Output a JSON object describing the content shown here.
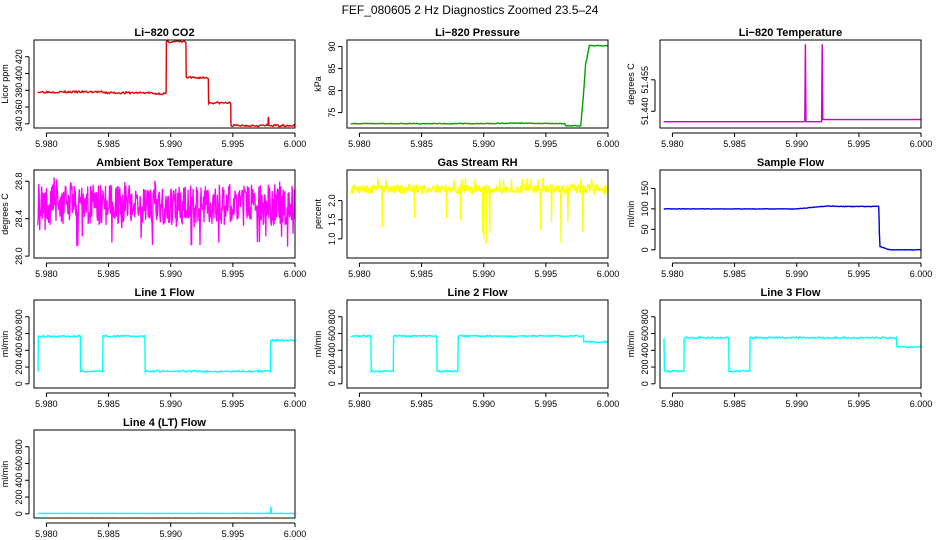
{
  "figure": {
    "title": "FEF_080605  2 Hz Diagnostics Zoomed 23.5–24"
  },
  "chart_data": [
    {
      "id": "li820-co2",
      "type": "line",
      "title": "Li−820 CO2",
      "ylabel": "Licor ppm",
      "color": "#e00000",
      "xlim": [
        5.979,
        6.0
      ],
      "ylim": [
        335,
        440
      ],
      "xticks": [
        5.98,
        5.985,
        5.99,
        5.995,
        6.0
      ],
      "xtick_labels": [
        "5.980",
        "5.985",
        "5.990",
        "5.995",
        "6.000"
      ],
      "yticks": [
        340,
        360,
        380,
        400,
        420
      ],
      "ytick_labels": [
        "340",
        "360",
        "380",
        "400",
        "420"
      ],
      "render": "step",
      "x": [
        5.9793,
        5.9845,
        5.9885,
        5.9896,
        5.98965,
        5.9912,
        5.99125,
        5.993,
        5.99305,
        5.9948,
        5.99485,
        5.9978,
        5.99785,
        5.9979,
        6.0
      ],
      "y": [
        378,
        377,
        376,
        376,
        438,
        437,
        395,
        394,
        365,
        364,
        338,
        338,
        347,
        338,
        337
      ],
      "noise": 1.2
    },
    {
      "id": "li820-pressure",
      "type": "line",
      "title": "Li−820 Pressure",
      "ylabel": "kPa",
      "color": "#00a000",
      "xlim": [
        5.979,
        6.0
      ],
      "ylim": [
        71.5,
        91.5
      ],
      "xticks": [
        5.98,
        5.985,
        5.99,
        5.995,
        6.0
      ],
      "xtick_labels": [
        "5.980",
        "5.985",
        "5.990",
        "5.995",
        "6.000"
      ],
      "yticks": [
        75,
        80,
        85,
        90
      ],
      "ytick_labels": [
        "75",
        "80",
        "85",
        "90"
      ],
      "render": "line",
      "x": [
        5.9793,
        5.99,
        5.993,
        5.9965,
        5.9966,
        5.9978,
        5.998,
        5.9982,
        5.9985,
        6.0
      ],
      "y": [
        72.5,
        72.5,
        72.6,
        72.5,
        72.0,
        72.0,
        78.0,
        86.0,
        90.2,
        90.2
      ],
      "noise": 0.08
    },
    {
      "id": "li820-temperature",
      "type": "line",
      "title": "Li−820 Temperature",
      "ylabel": "degrees C",
      "color": "#cc00cc",
      "xlim": [
        5.979,
        6.0
      ],
      "ylim": [
        51.432,
        51.474
      ],
      "xticks": [
        5.98,
        5.985,
        5.99,
        5.995,
        6.0
      ],
      "xtick_labels": [
        "5.980",
        "5.985",
        "5.990",
        "5.995",
        "6.000"
      ],
      "yticks": [
        51.44,
        51.455
      ],
      "ytick_labels": [
        "51.440",
        "51.455"
      ],
      "render": "line",
      "x": [
        5.9793,
        5.99065,
        5.9907,
        5.99075,
        5.992,
        5.99205,
        5.9921,
        6.0
      ],
      "y": [
        51.435,
        51.435,
        51.472,
        51.435,
        51.435,
        51.472,
        51.436,
        51.436
      ],
      "noise": 0
    },
    {
      "id": "ambient-box-temperature",
      "type": "line",
      "title": "Ambient Box Temperature",
      "ylabel": "degrees C",
      "color": "#ff00ff",
      "xlim": [
        5.979,
        6.0
      ],
      "ylim": [
        27.98,
        28.92
      ],
      "xticks": [
        5.98,
        5.985,
        5.99,
        5.995,
        6.0
      ],
      "xtick_labels": [
        "5.980",
        "5.985",
        "5.990",
        "5.995",
        "6.000"
      ],
      "yticks": [
        28.0,
        28.4,
        28.8
      ],
      "ytick_labels": [
        "28.0",
        "28.4",
        "28.8"
      ],
      "render": "noise",
      "x": [
        5.9793,
        6.0
      ],
      "y": [
        28.55,
        28.55
      ],
      "noise": 0.22,
      "spike_down": 28.1,
      "spike_up": 28.85
    },
    {
      "id": "gas-stream-rh",
      "type": "line",
      "title": "Gas Stream RH",
      "ylabel": "percent",
      "color": "#ffff00",
      "xlim": [
        5.979,
        6.0
      ],
      "ylim": [
        0.5,
        2.8
      ],
      "xticks": [
        5.98,
        5.985,
        5.99,
        5.995,
        6.0
      ],
      "xtick_labels": [
        "5.980",
        "5.985",
        "5.990",
        "5.995",
        "6.000"
      ],
      "yticks": [
        1.0,
        1.5,
        2.0
      ],
      "ytick_labels": [
        "1.0",
        "1.5",
        "2.0"
      ],
      "render": "noise",
      "x": [
        5.9793,
        6.0
      ],
      "y": [
        2.3,
        2.3
      ],
      "noise": 0.12,
      "spike_down": 0.8,
      "spike_up": 2.6
    },
    {
      "id": "sample-flow",
      "type": "line",
      "title": "Sample Flow",
      "ylabel": "ml/min",
      "color": "#0000dd",
      "xlim": [
        5.979,
        6.0
      ],
      "ylim": [
        -20,
        195
      ],
      "xticks": [
        5.98,
        5.985,
        5.99,
        5.995,
        6.0
      ],
      "xtick_labels": [
        "5.980",
        "5.985",
        "5.990",
        "5.995",
        "6.000"
      ],
      "yticks": [
        0,
        50,
        100,
        150
      ],
      "ytick_labels": [
        "0",
        "50",
        "100",
        "150"
      ],
      "render": "line",
      "x": [
        5.9793,
        5.99,
        5.991,
        5.9925,
        5.9935,
        5.9966,
        5.99665,
        5.9967,
        5.9975,
        6.0
      ],
      "y": [
        100,
        100,
        103,
        107,
        106,
        106,
        40,
        8,
        0,
        0
      ],
      "noise": 0.6
    },
    {
      "id": "line-1-flow",
      "type": "line",
      "title": "Line 1 Flow",
      "ylabel": "ml/min",
      "color": "#00ffff",
      "xlim": [
        5.979,
        6.0
      ],
      "ylim": [
        -50,
        1000
      ],
      "xticks": [
        5.98,
        5.985,
        5.99,
        5.995,
        6.0
      ],
      "xtick_labels": [
        "5.980",
        "5.985",
        "5.990",
        "5.995",
        "6.000"
      ],
      "yticks": [
        0,
        200,
        400,
        600,
        800
      ],
      "ytick_labels": [
        "0",
        "200",
        "400",
        "600",
        "800"
      ],
      "render": "step",
      "x": [
        5.9793,
        5.97935,
        5.9827,
        5.98275,
        5.9845,
        5.98455,
        5.9879,
        5.98795,
        5.998,
        5.99805,
        6.0
      ],
      "y": [
        160,
        570,
        570,
        150,
        150,
        570,
        570,
        150,
        150,
        520,
        520
      ],
      "noise": 10
    },
    {
      "id": "line-2-flow",
      "type": "line",
      "title": "Line 2 Flow",
      "ylabel": "ml/min",
      "color": "#00ffff",
      "xlim": [
        5.979,
        6.0
      ],
      "ylim": [
        -50,
        1000
      ],
      "xticks": [
        5.98,
        5.985,
        5.99,
        5.995,
        6.0
      ],
      "xtick_labels": [
        "5.980",
        "5.985",
        "5.990",
        "5.995",
        "6.000"
      ],
      "yticks": [
        0,
        200,
        400,
        600,
        800
      ],
      "ytick_labels": [
        "0",
        "200",
        "400",
        "600",
        "800"
      ],
      "render": "step",
      "x": [
        5.9793,
        5.9809,
        5.98095,
        5.9827,
        5.98275,
        5.9862,
        5.98625,
        5.9879,
        5.98795,
        5.998,
        5.99805,
        6.0
      ],
      "y": [
        570,
        570,
        150,
        150,
        570,
        570,
        150,
        150,
        570,
        570,
        500,
        500
      ],
      "noise": 10
    },
    {
      "id": "line-3-flow",
      "type": "line",
      "title": "Line 3 Flow",
      "ylabel": "ml/min",
      "color": "#00ffff",
      "xlim": [
        5.979,
        6.0
      ],
      "ylim": [
        -50,
        1000
      ],
      "xticks": [
        5.98,
        5.985,
        5.99,
        5.995,
        6.0
      ],
      "xtick_labels": [
        "5.980",
        "5.985",
        "5.990",
        "5.995",
        "6.000"
      ],
      "yticks": [
        0,
        200,
        400,
        600,
        800
      ],
      "ytick_labels": [
        "0",
        "200",
        "400",
        "600",
        "800"
      ],
      "render": "step",
      "x": [
        5.9793,
        5.97935,
        5.9809,
        5.98095,
        5.9845,
        5.98455,
        5.9862,
        5.98625,
        5.998,
        5.99805,
        6.0
      ],
      "y": [
        540,
        150,
        150,
        550,
        550,
        150,
        150,
        550,
        550,
        440,
        440
      ],
      "noise": 10
    },
    {
      "id": "line-4-lt-flow",
      "type": "line",
      "title": "Line 4 (LT) Flow",
      "ylabel": "ml/min",
      "color": "#00ffff",
      "xlim": [
        5.979,
        6.0
      ],
      "ylim": [
        -50,
        1000
      ],
      "xticks": [
        5.98,
        5.985,
        5.99,
        5.995,
        6.0
      ],
      "xtick_labels": [
        "5.980",
        "5.985",
        "5.990",
        "5.995",
        "6.000"
      ],
      "yticks": [
        0,
        200,
        400,
        600,
        800
      ],
      "ytick_labels": [
        "0",
        "200",
        "400",
        "600",
        "800"
      ],
      "render": "line",
      "x": [
        5.9793,
        5.998,
        5.99805,
        5.9981,
        5.99815,
        6.0
      ],
      "y": [
        5,
        5,
        90,
        20,
        5,
        5
      ],
      "noise": 2
    }
  ]
}
